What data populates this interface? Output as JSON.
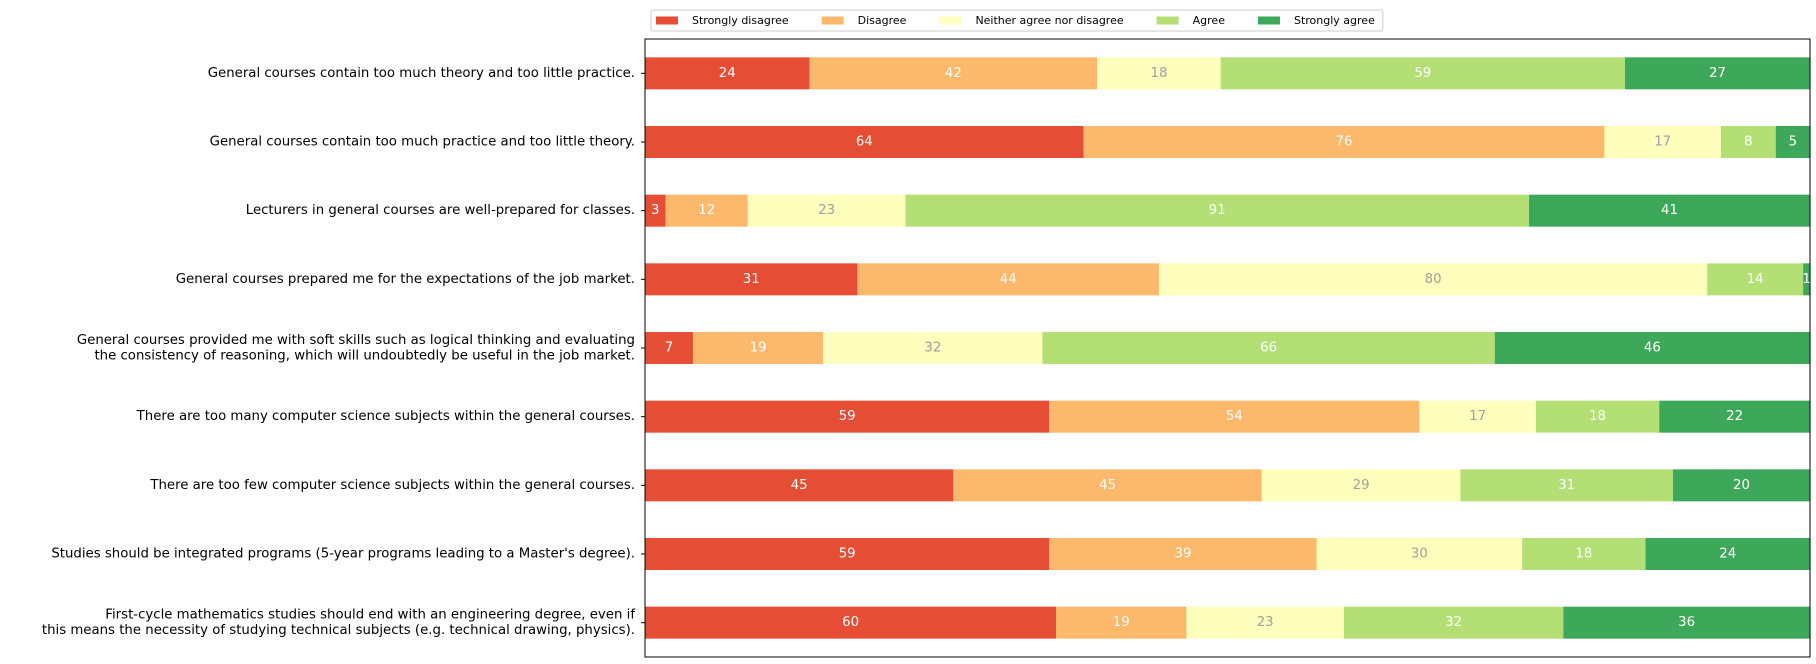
{
  "chart_data": {
    "type": "bar",
    "orientation": "horizontal",
    "stacked": true,
    "title": "",
    "xlabel": "",
    "ylabel": "",
    "xlim": [
      0,
      170
    ],
    "grid": false,
    "legend_position": "top-left, above plot",
    "categories": [
      [
        "General courses contain too much theory and too little practice."
      ],
      [
        "General courses contain too much practice and too little theory."
      ],
      [
        "Lecturers in general courses are well-prepared for classes."
      ],
      [
        "General courses prepared me for the expectations of the job market."
      ],
      [
        "General courses provided me with soft skills such as logical thinking and evaluating",
        "the consistency of reasoning, which will undoubtedly be useful in the job market."
      ],
      [
        "There are too many computer science subjects within the general courses."
      ],
      [
        "There are too few computer science subjects within the general courses."
      ],
      [
        "Studies should be integrated programs (5-year programs leading to a Master's degree)."
      ],
      [
        "First-cycle mathematics studies should end with an engineering degree, even if",
        "this means the necessity of studying technical subjects (e.g. technical drawing, physics)."
      ]
    ],
    "series": [
      {
        "name": "Strongly disagree",
        "color": "#e64d35",
        "label_color": "#ffffff",
        "values": [
          24,
          64,
          3,
          31,
          7,
          59,
          45,
          59,
          60
        ]
      },
      {
        "name": "Disagree",
        "color": "#fcb96b",
        "label_color": "#ffffff",
        "values": [
          42,
          76,
          12,
          44,
          19,
          54,
          45,
          39,
          19
        ]
      },
      {
        "name": "Neither agree nor disagree",
        "color": "#fefebd",
        "label_color": "#a0a0a0",
        "values": [
          18,
          17,
          23,
          80,
          32,
          17,
          29,
          30,
          23
        ]
      },
      {
        "name": "Agree",
        "color": "#b3df75",
        "label_color": "#ffffff",
        "values": [
          59,
          8,
          91,
          14,
          66,
          18,
          31,
          18,
          32
        ]
      },
      {
        "name": "Strongly agree",
        "color": "#3ea85a",
        "label_color": "#ffffff",
        "values": [
          27,
          5,
          41,
          1,
          46,
          22,
          20,
          24,
          36
        ]
      }
    ]
  }
}
